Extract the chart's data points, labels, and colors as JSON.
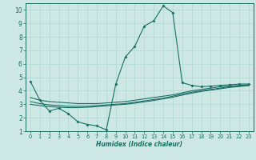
{
  "xlabel": "Humidex (Indice chaleur)",
  "background_color": "#cde8e4",
  "grid_color": "#b0d8d4",
  "line_color": "#1a6e65",
  "xlim": [
    -0.5,
    23.5
  ],
  "ylim": [
    1,
    10.5
  ],
  "xticks": [
    0,
    1,
    2,
    3,
    4,
    5,
    6,
    7,
    8,
    9,
    10,
    11,
    12,
    13,
    14,
    15,
    16,
    17,
    18,
    19,
    20,
    21,
    22,
    23
  ],
  "yticks": [
    1,
    2,
    3,
    4,
    5,
    6,
    7,
    8,
    9,
    10
  ],
  "curve1_x": [
    0,
    1,
    2,
    3,
    4,
    5,
    6,
    7,
    8,
    9,
    10,
    11,
    12,
    13,
    14,
    15,
    16,
    17,
    18,
    19,
    20,
    21,
    22,
    23
  ],
  "curve1_y": [
    4.7,
    3.3,
    2.5,
    2.7,
    2.3,
    1.7,
    1.5,
    1.4,
    1.1,
    4.5,
    6.5,
    7.3,
    8.8,
    9.2,
    10.3,
    9.8,
    4.6,
    4.4,
    4.3,
    4.35,
    4.4,
    4.45,
    4.5,
    4.5
  ],
  "curve2_x": [
    0,
    1,
    2,
    3,
    4,
    5,
    6,
    7,
    8,
    9,
    10,
    11,
    12,
    13,
    14,
    15,
    16,
    17,
    18,
    19,
    20,
    21,
    22,
    23
  ],
  "curve2_y": [
    3.5,
    3.3,
    3.2,
    3.15,
    3.1,
    3.05,
    3.05,
    3.05,
    3.1,
    3.15,
    3.2,
    3.3,
    3.4,
    3.5,
    3.6,
    3.7,
    3.85,
    4.0,
    4.1,
    4.2,
    4.3,
    4.35,
    4.4,
    4.45
  ],
  "curve3_x": [
    0,
    1,
    2,
    3,
    4,
    5,
    6,
    7,
    8,
    9,
    10,
    11,
    12,
    13,
    14,
    15,
    16,
    17,
    18,
    19,
    20,
    21,
    22,
    23
  ],
  "curve3_y": [
    3.2,
    3.05,
    2.95,
    2.9,
    2.85,
    2.85,
    2.85,
    2.9,
    2.95,
    3.0,
    3.05,
    3.15,
    3.25,
    3.35,
    3.45,
    3.6,
    3.75,
    3.9,
    4.0,
    4.1,
    4.2,
    4.3,
    4.35,
    4.4
  ],
  "curve4_x": [
    0,
    1,
    2,
    3,
    4,
    5,
    6,
    7,
    8,
    9,
    10,
    11,
    12,
    13,
    14,
    15,
    16,
    17,
    18,
    19,
    20,
    21,
    22,
    23
  ],
  "curve4_y": [
    3.0,
    2.9,
    2.82,
    2.78,
    2.75,
    2.75,
    2.78,
    2.82,
    2.88,
    2.95,
    3.0,
    3.08,
    3.18,
    3.28,
    3.4,
    3.52,
    3.68,
    3.82,
    3.95,
    4.05,
    4.15,
    4.25,
    4.32,
    4.38
  ]
}
